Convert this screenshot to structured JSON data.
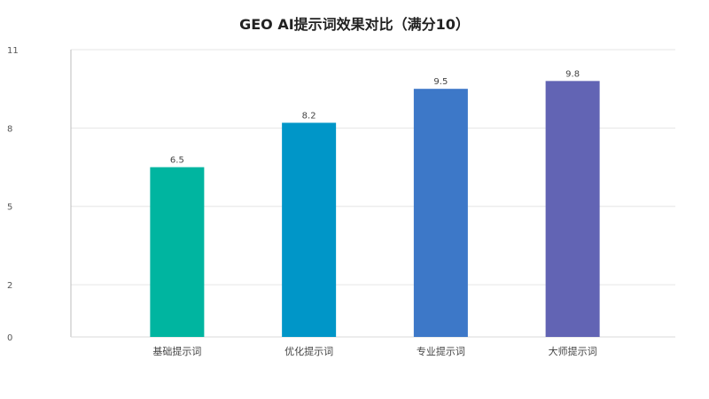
{
  "chart_data": {
    "type": "bar",
    "title": "GEO AI提示词效果对比（满分10）",
    "xlabel": "",
    "ylabel": "",
    "categories": [
      "基础提示词",
      "优化提示词",
      "专业提示词",
      "大师提示词"
    ],
    "values": [
      6.5,
      8.2,
      9.5,
      9.8
    ],
    "data_labels": [
      "6.5",
      "8.2",
      "9.5",
      "9.8"
    ],
    "y_ticks": [
      0,
      2,
      5,
      8,
      11
    ],
    "y_tick_labels": [
      "0",
      "2",
      "5",
      "8",
      "11"
    ],
    "ylim": [
      0,
      11
    ],
    "grid": true,
    "legend": "none",
    "colors": [
      "#00b5a0",
      "#0096c8",
      "#3d78c8",
      "#6264b4"
    ]
  }
}
